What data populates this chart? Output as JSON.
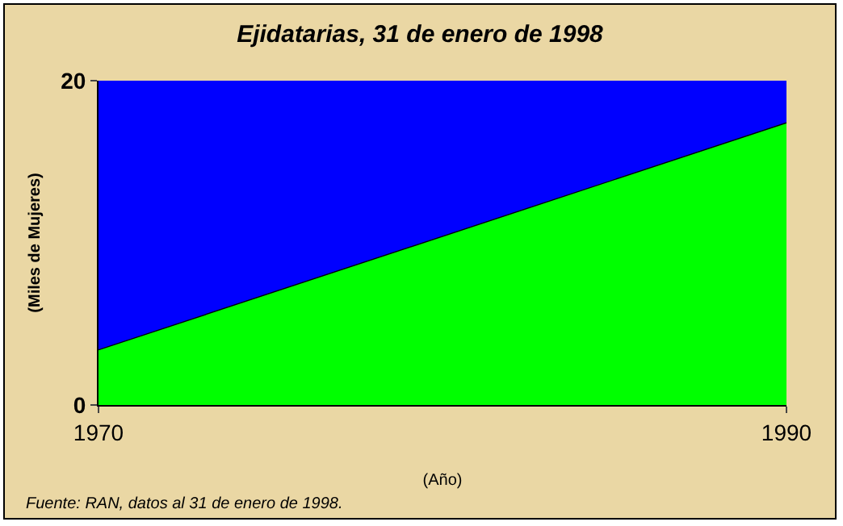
{
  "chart_data": {
    "type": "area",
    "title": "Ejidatarias, 31 de enero de 1998",
    "xlabel": "(Año)",
    "ylabel": "(Miles de Mujeres)",
    "x": [
      1970,
      1990
    ],
    "series": [
      {
        "color": "#00ff00",
        "values": [
          3.4,
          17.4
        ]
      }
    ],
    "xlim": [
      1970,
      1990
    ],
    "xticks": [
      1970,
      1990
    ],
    "ylim": [
      0,
      20
    ],
    "yticks": [
      0,
      20
    ],
    "bands": [
      {
        "axis": "y",
        "from": 0,
        "to": 20,
        "color": "#0000ff"
      }
    ],
    "annotations": [
      "Fuente: RAN, datos al 31 de enero de 1998."
    ],
    "legend": false
  }
}
